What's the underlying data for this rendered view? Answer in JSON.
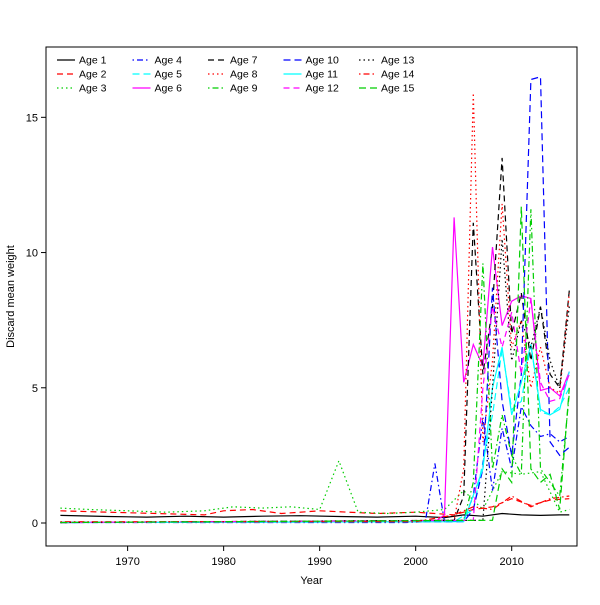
{
  "figure": {
    "background": "#ffffff"
  },
  "axes": {
    "xlabel": "Year",
    "ylabel": "Discard mean weight",
    "x_ticks": [
      1970,
      1980,
      1990,
      2000,
      2010
    ],
    "y_ticks": [
      0,
      5,
      10,
      15
    ],
    "xlim": [
      1961.5,
      2016.8
    ],
    "ylim": [
      -0.85,
      17.6
    ]
  },
  "legend": {
    "position": "top-left",
    "ncol": 5,
    "fill_order": "column-major"
  },
  "chart_data": {
    "type": "line",
    "title": "",
    "xlabel": "Year",
    "ylabel": "Discard mean weight",
    "x_range": [
      1963,
      2016
    ],
    "ylim_shown": [
      0,
      16.5
    ],
    "grid": false,
    "series": [
      {
        "name": "Age 1",
        "color": "#000000",
        "linetype": "solid",
        "dash": [],
        "points": [
          [
            1963,
            0.28
          ],
          [
            1968,
            0.24
          ],
          [
            1972,
            0.22
          ],
          [
            1976,
            0.25
          ],
          [
            1980,
            0.22
          ],
          [
            1984,
            0.25
          ],
          [
            1988,
            0.27
          ],
          [
            1992,
            0.24
          ],
          [
            1996,
            0.22
          ],
          [
            2000,
            0.25
          ],
          [
            2003,
            0.2
          ],
          [
            2005,
            0.3
          ],
          [
            2007,
            0.25
          ],
          [
            2009,
            0.35
          ],
          [
            2011,
            0.3
          ],
          [
            2013,
            0.28
          ],
          [
            2015,
            0.3
          ],
          [
            2016,
            0.3
          ]
        ]
      },
      {
        "name": "Age 2",
        "color": "#ff0000",
        "linetype": "dashed",
        "dash": [
          6,
          4
        ],
        "points": [
          [
            1963,
            0.45
          ],
          [
            1968,
            0.4
          ],
          [
            1973,
            0.35
          ],
          [
            1978,
            0.3
          ],
          [
            1980,
            0.45
          ],
          [
            1983,
            0.5
          ],
          [
            1986,
            0.35
          ],
          [
            1990,
            0.45
          ],
          [
            1993,
            0.4
          ],
          [
            1996,
            0.35
          ],
          [
            2000,
            0.4
          ],
          [
            2002,
            0.35
          ],
          [
            2004,
            0.3
          ],
          [
            2006,
            0.5
          ],
          [
            2008,
            0.6
          ],
          [
            2010,
            0.9
          ],
          [
            2012,
            0.65
          ],
          [
            2014,
            0.85
          ],
          [
            2016,
            0.9
          ]
        ]
      },
      {
        "name": "Age 3",
        "color": "#00cd00",
        "linetype": "dotted",
        "dash": [
          1.5,
          3
        ],
        "points": [
          [
            1963,
            0.55
          ],
          [
            1966,
            0.5
          ],
          [
            1970,
            0.45
          ],
          [
            1974,
            0.4
          ],
          [
            1978,
            0.45
          ],
          [
            1981,
            0.6
          ],
          [
            1984,
            0.55
          ],
          [
            1987,
            0.6
          ],
          [
            1990,
            0.5
          ],
          [
            1992,
            2.3
          ],
          [
            1994,
            0.4
          ],
          [
            1997,
            0.35
          ],
          [
            2000,
            0.4
          ],
          [
            2003,
            0.5
          ],
          [
            2005,
            1.2
          ],
          [
            2007,
            0.5
          ],
          [
            2009,
            1.9
          ],
          [
            2011,
            1.8
          ],
          [
            2013,
            1.9
          ],
          [
            2015,
            0.4
          ],
          [
            2016,
            0.5
          ]
        ]
      },
      {
        "name": "Age 4",
        "color": "#0000ff",
        "linetype": "dotdash",
        "dash": [
          1.5,
          3,
          6,
          3
        ],
        "points": [
          [
            1963,
            0.02
          ],
          [
            1999,
            0.02
          ],
          [
            2001,
            0.05
          ],
          [
            2002,
            2.2
          ],
          [
            2003,
            0.05
          ],
          [
            2005,
            0.1
          ],
          [
            2006,
            1.0
          ],
          [
            2007,
            3.9
          ],
          [
            2008,
            1.2
          ],
          [
            2009,
            3.5
          ],
          [
            2010,
            2.0
          ],
          [
            2011,
            4.3
          ],
          [
            2012,
            3.6
          ],
          [
            2013,
            3.2
          ],
          [
            2014,
            3.3
          ],
          [
            2015,
            3.0
          ],
          [
            2016,
            3.2
          ]
        ]
      },
      {
        "name": "Age 5",
        "color": "#00ffff",
        "linetype": "longdash",
        "dash": [
          7,
          4
        ],
        "points": [
          [
            1963,
            0.02
          ],
          [
            2004,
            0.05
          ],
          [
            2006,
            0.5
          ],
          [
            2008,
            4.0
          ],
          [
            2009,
            6.4
          ],
          [
            2010,
            4.2
          ],
          [
            2011,
            4.5
          ],
          [
            2012,
            6.6
          ],
          [
            2013,
            4.1
          ],
          [
            2014,
            4.0
          ],
          [
            2015,
            4.3
          ],
          [
            2016,
            5.0
          ]
        ]
      },
      {
        "name": "Age 6",
        "color": "#ff00ff",
        "linetype": "solid",
        "dash": [],
        "points": [
          [
            1963,
            0.02
          ],
          [
            2002,
            0.05
          ],
          [
            2003,
            0.3
          ],
          [
            2004,
            11.3
          ],
          [
            2005,
            5.2
          ],
          [
            2006,
            6.6
          ],
          [
            2007,
            5.8
          ],
          [
            2008,
            10.2
          ],
          [
            2009,
            7.3
          ],
          [
            2010,
            8.2
          ],
          [
            2011,
            8.4
          ],
          [
            2012,
            8.3
          ],
          [
            2013,
            4.9
          ],
          [
            2014,
            5.0
          ],
          [
            2015,
            4.7
          ],
          [
            2016,
            5.6
          ]
        ]
      },
      {
        "name": "Age 7",
        "color": "#000000",
        "linetype": "dashed",
        "dash": [
          6,
          4
        ],
        "points": [
          [
            1963,
            0.02
          ],
          [
            2004,
            0.1
          ],
          [
            2005,
            1.0
          ],
          [
            2006,
            11.1
          ],
          [
            2007,
            5.5
          ],
          [
            2008,
            8.0
          ],
          [
            2009,
            13.5
          ],
          [
            2010,
            7.0
          ],
          [
            2011,
            8.5
          ],
          [
            2012,
            6.0
          ],
          [
            2013,
            8.0
          ],
          [
            2014,
            5.5
          ],
          [
            2015,
            5.0
          ],
          [
            2016,
            8.6
          ]
        ]
      },
      {
        "name": "Age 8",
        "color": "#ff0000",
        "linetype": "dotted",
        "dash": [
          1.5,
          3
        ],
        "points": [
          [
            1963,
            0.02
          ],
          [
            2004,
            0.1
          ],
          [
            2005,
            2.0
          ],
          [
            2006,
            15.9
          ],
          [
            2007,
            3.0
          ],
          [
            2008,
            6.0
          ],
          [
            2009,
            11.8
          ],
          [
            2010,
            6.5
          ],
          [
            2011,
            7.5
          ],
          [
            2012,
            5.0
          ],
          [
            2013,
            6.5
          ],
          [
            2014,
            5.0
          ],
          [
            2015,
            4.8
          ],
          [
            2016,
            8.5
          ]
        ]
      },
      {
        "name": "Age 9",
        "color": "#00cd00",
        "linetype": "dotdash",
        "dash": [
          1.5,
          3,
          6,
          3
        ],
        "points": [
          [
            1963,
            0.02
          ],
          [
            2005,
            0.1
          ],
          [
            2006,
            1.5
          ],
          [
            2007,
            9.6
          ],
          [
            2008,
            2.0
          ],
          [
            2009,
            4.0
          ],
          [
            2010,
            2.5
          ],
          [
            2011,
            1.8
          ],
          [
            2012,
            11.6
          ],
          [
            2013,
            2.0
          ],
          [
            2014,
            1.5
          ],
          [
            2015,
            1.0
          ],
          [
            2016,
            4.8
          ]
        ]
      },
      {
        "name": "Age 10",
        "color": "#0000ff",
        "linetype": "longdash",
        "dash": [
          7,
          4
        ],
        "points": [
          [
            1963,
            0.02
          ],
          [
            2005,
            0.05
          ],
          [
            2006,
            0.5
          ],
          [
            2007,
            2.0
          ],
          [
            2008,
            8.7
          ],
          [
            2009,
            4.5
          ],
          [
            2010,
            2.5
          ],
          [
            2011,
            5.5
          ],
          [
            2012,
            16.4
          ],
          [
            2013,
            16.5
          ],
          [
            2014,
            3.0
          ],
          [
            2015,
            2.5
          ],
          [
            2016,
            2.8
          ]
        ]
      },
      {
        "name": "Age 11",
        "color": "#00ffff",
        "linetype": "solid",
        "dash": [],
        "points": [
          [
            1963,
            0.02
          ],
          [
            2005,
            0.05
          ],
          [
            2007,
            2.0
          ],
          [
            2008,
            5.0
          ],
          [
            2009,
            6.5
          ],
          [
            2010,
            4.0
          ],
          [
            2011,
            5.2
          ],
          [
            2012,
            6.6
          ],
          [
            2013,
            4.2
          ],
          [
            2014,
            4.0
          ],
          [
            2015,
            4.2
          ],
          [
            2016,
            5.6
          ]
        ]
      },
      {
        "name": "Age 12",
        "color": "#ff00ff",
        "linetype": "dashed",
        "dash": [
          6,
          4
        ],
        "points": [
          [
            1963,
            0.02
          ],
          [
            2006,
            0.1
          ],
          [
            2007,
            5.0
          ],
          [
            2008,
            8.0
          ],
          [
            2009,
            6.5
          ],
          [
            2010,
            7.8
          ],
          [
            2011,
            5.5
          ],
          [
            2012,
            8.3
          ],
          [
            2013,
            5.2
          ],
          [
            2014,
            4.5
          ],
          [
            2015,
            4.6
          ],
          [
            2016,
            5.5
          ]
        ]
      },
      {
        "name": "Age 13",
        "color": "#000000",
        "linetype": "dotted",
        "dash": [
          1.5,
          3
        ],
        "points": [
          [
            1963,
            0.02
          ],
          [
            2007,
            0.1
          ],
          [
            2008,
            5.0
          ],
          [
            2009,
            10.5
          ],
          [
            2010,
            6.0
          ],
          [
            2011,
            7.5
          ],
          [
            2012,
            6.5
          ],
          [
            2013,
            8.0
          ],
          [
            2014,
            6.0
          ],
          [
            2015,
            5.0
          ],
          [
            2016,
            8.0
          ]
        ]
      },
      {
        "name": "Age 14",
        "color": "#ff0000",
        "linetype": "dotdash",
        "dash": [
          1.5,
          3,
          6,
          3
        ],
        "points": [
          [
            1963,
            0.05
          ],
          [
            1980,
            0.05
          ],
          [
            2000,
            0.05
          ],
          [
            2004,
            0.3
          ],
          [
            2006,
            0.6
          ],
          [
            2008,
            0.5
          ],
          [
            2010,
            1.0
          ],
          [
            2012,
            0.6
          ],
          [
            2014,
            0.9
          ],
          [
            2016,
            1.0
          ]
        ]
      },
      {
        "name": "Age 15",
        "color": "#00cd00",
        "linetype": "longdash",
        "dash": [
          7,
          4
        ],
        "points": [
          [
            1963,
            0.02
          ],
          [
            2008,
            0.1
          ],
          [
            2009,
            2.0
          ],
          [
            2010,
            1.5
          ],
          [
            2011,
            11.7
          ],
          [
            2012,
            2.0
          ],
          [
            2013,
            1.5
          ],
          [
            2014,
            1.8
          ],
          [
            2015,
            0.5
          ],
          [
            2016,
            5.0
          ]
        ]
      }
    ]
  }
}
